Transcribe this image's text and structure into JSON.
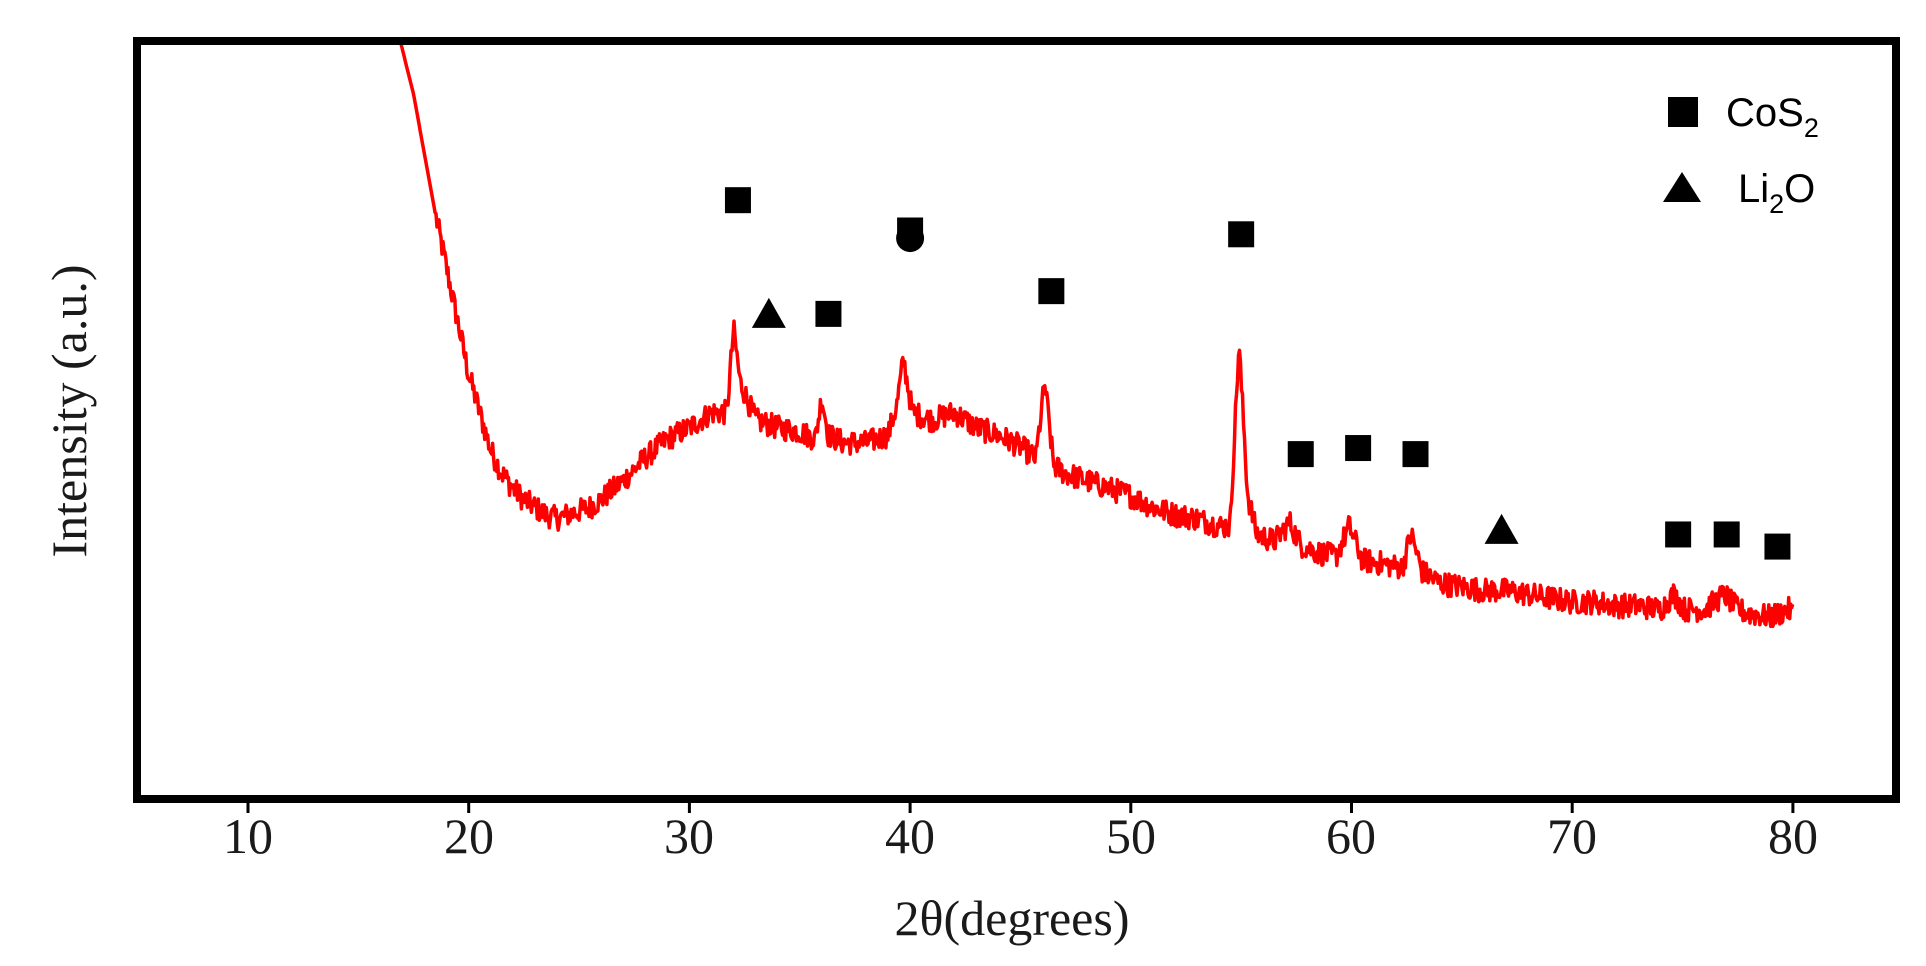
{
  "chart_data": {
    "type": "line",
    "xlabel": "2θ(degrees)",
    "ylabel": "Intensity (a.u.)",
    "xlim": [
      5,
      85
    ],
    "ylim": [
      0,
      100
    ],
    "y_tick_labels": false,
    "grid": false,
    "x_ticks": [
      10,
      20,
      30,
      40,
      50,
      60,
      70,
      80
    ],
    "x_tick_labels": [
      "10",
      "20",
      "30",
      "40",
      "50",
      "60",
      "70",
      "80"
    ],
    "legend": {
      "placement": "top-right",
      "entries": [
        {
          "marker": "square",
          "label_main": "CoS",
          "label_sub": "2"
        },
        {
          "marker": "triangle",
          "label_main": "Li",
          "label_sub": "2",
          "label_tail": "O"
        }
      ]
    },
    "series": [
      {
        "color": "#ff0000",
        "noise": 1.6,
        "points": [
          [
            16.9,
            100
          ],
          [
            17.5,
            93
          ],
          [
            18,
            85
          ],
          [
            18.5,
            77
          ],
          [
            19,
            70
          ],
          [
            19.5,
            63
          ],
          [
            20,
            56
          ],
          [
            20.5,
            51
          ],
          [
            21,
            46
          ],
          [
            21.5,
            43
          ],
          [
            22,
            41
          ],
          [
            22.5,
            39.5
          ],
          [
            23,
            38.5
          ],
          [
            23.5,
            37.5
          ],
          [
            24,
            37
          ],
          [
            24.5,
            37.5
          ],
          [
            25,
            38
          ],
          [
            25.5,
            38.5
          ],
          [
            26,
            39.5
          ],
          [
            27,
            42
          ],
          [
            28,
            45
          ],
          [
            29,
            47.5
          ],
          [
            30,
            49
          ],
          [
            31,
            51
          ],
          [
            31.7,
            51
          ],
          [
            32,
            62
          ],
          [
            32.3,
            55
          ],
          [
            33,
            50
          ],
          [
            34,
            49
          ],
          [
            35,
            48.5
          ],
          [
            35.7,
            47.5
          ],
          [
            36,
            53
          ],
          [
            36.3,
            48
          ],
          [
            37,
            47
          ],
          [
            38,
            47
          ],
          [
            39,
            48
          ],
          [
            39.4,
            52
          ],
          [
            39.7,
            58
          ],
          [
            40.1,
            51
          ],
          [
            41,
            50
          ],
          [
            42,
            51
          ],
          [
            43,
            49
          ],
          [
            44,
            48
          ],
          [
            45,
            46.5
          ],
          [
            45.7,
            45
          ],
          [
            46.1,
            55
          ],
          [
            46.5,
            44
          ],
          [
            47,
            43
          ],
          [
            48,
            42
          ],
          [
            49,
            41
          ],
          [
            50,
            40
          ],
          [
            51,
            38.5
          ],
          [
            52,
            37.5
          ],
          [
            53,
            37
          ],
          [
            54,
            36
          ],
          [
            54.5,
            36
          ],
          [
            54.9,
            60
          ],
          [
            55.3,
            40
          ],
          [
            55.7,
            35
          ],
          [
            56.5,
            34
          ],
          [
            57.2,
            36.5
          ],
          [
            57.7,
            33.5
          ],
          [
            58.5,
            32.5
          ],
          [
            59.3,
            32
          ],
          [
            59.9,
            36
          ],
          [
            60.5,
            31.5
          ],
          [
            61.5,
            31
          ],
          [
            62.3,
            30.5
          ],
          [
            62.7,
            35
          ],
          [
            63.2,
            30
          ],
          [
            64,
            28.5
          ],
          [
            65,
            28
          ],
          [
            66,
            27.5
          ],
          [
            67,
            27.5
          ],
          [
            68,
            27
          ],
          [
            69,
            26.5
          ],
          [
            70,
            26
          ],
          [
            71,
            26
          ],
          [
            72,
            25.5
          ],
          [
            73,
            25.5
          ],
          [
            74,
            25
          ],
          [
            74.6,
            27
          ],
          [
            75.1,
            25
          ],
          [
            76,
            25
          ],
          [
            76.9,
            27
          ],
          [
            77.5,
            25
          ],
          [
            78,
            24.5
          ],
          [
            79,
            24
          ],
          [
            79.8,
            25
          ],
          [
            80,
            24.5
          ]
        ]
      }
    ],
    "annotations": [
      {
        "marker": "square",
        "x": 32.2,
        "y": 79
      },
      {
        "marker": "triangle",
        "x": 33.6,
        "y": 64
      },
      {
        "marker": "square",
        "x": 36.3,
        "y": 64
      },
      {
        "marker": "circle",
        "x": 40,
        "y": 74
      },
      {
        "marker": "square",
        "x": 40,
        "y": 75
      },
      {
        "marker": "square",
        "x": 46.4,
        "y": 67
      },
      {
        "marker": "square",
        "x": 55,
        "y": 74.5
      },
      {
        "marker": "square",
        "x": 57.7,
        "y": 45.5
      },
      {
        "marker": "square",
        "x": 60.3,
        "y": 46.3
      },
      {
        "marker": "square",
        "x": 62.9,
        "y": 45.5
      },
      {
        "marker": "triangle",
        "x": 66.8,
        "y": 35.5
      },
      {
        "marker": "square",
        "x": 74.8,
        "y": 34.9
      },
      {
        "marker": "square",
        "x": 77,
        "y": 34.9
      },
      {
        "marker": "square",
        "x": 79.3,
        "y": 33.3
      }
    ]
  }
}
